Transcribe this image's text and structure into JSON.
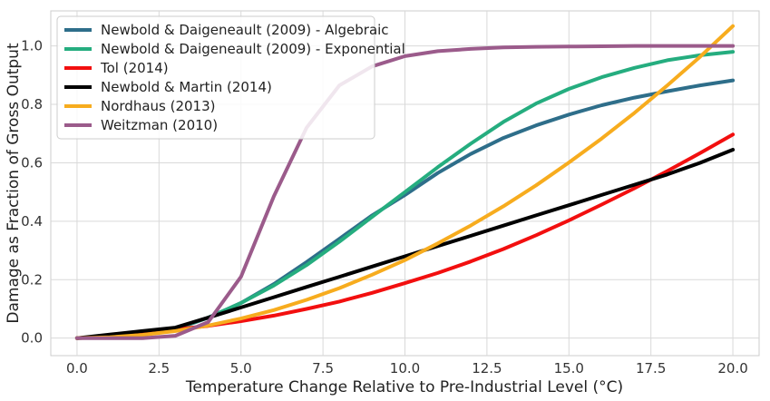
{
  "chart_data": {
    "type": "line",
    "title": "",
    "xlabel": "Temperature Change Relative to Pre-Industrial Level (°C)",
    "ylabel": "Damage as Fraction of Gross Output",
    "xlim": [
      -0.8,
      20.8
    ],
    "ylim": [
      -0.06,
      1.12
    ],
    "xticks": [
      "0.0",
      "2.5",
      "5.0",
      "7.5",
      "10.0",
      "12.5",
      "15.0",
      "17.5",
      "20.0"
    ],
    "yticks": [
      "0.0",
      "0.2",
      "0.4",
      "0.6",
      "0.8",
      "1.0"
    ],
    "grid": true,
    "legend_position": "top-left",
    "x": [
      0,
      1,
      2,
      3,
      4,
      5,
      6,
      7,
      8,
      9,
      10,
      11,
      12,
      13,
      14,
      15,
      16,
      17,
      18,
      19,
      20
    ],
    "series": [
      {
        "name": "Newbold & Daigeneault (2009) - Algebraic",
        "color": "#2e6e8a",
        "values": [
          0.0,
          0.005,
          0.015,
          0.03,
          0.07,
          0.12,
          0.185,
          0.26,
          0.34,
          0.42,
          0.49,
          0.565,
          0.63,
          0.685,
          0.728,
          0.765,
          0.797,
          0.823,
          0.845,
          0.865,
          0.882
        ]
      },
      {
        "name": "Newbold & Daigeneault (2009) - Exponential",
        "color": "#25ad7f",
        "values": [
          0.0,
          0.005,
          0.015,
          0.033,
          0.07,
          0.12,
          0.18,
          0.25,
          0.33,
          0.415,
          0.5,
          0.585,
          0.665,
          0.74,
          0.803,
          0.853,
          0.893,
          0.925,
          0.951,
          0.968,
          0.98
        ]
      },
      {
        "name": "Tol (2014)",
        "color": "#f20f0f",
        "values": [
          0.0,
          0.008,
          0.018,
          0.03,
          0.042,
          0.058,
          0.077,
          0.1,
          0.125,
          0.155,
          0.188,
          0.223,
          0.262,
          0.305,
          0.352,
          0.403,
          0.457,
          0.513,
          0.572,
          0.633,
          0.697
        ]
      },
      {
        "name": "Newbold & Martin (2014)",
        "color": "#000000",
        "values": [
          0.0,
          0.012,
          0.024,
          0.036,
          0.07,
          0.105,
          0.14,
          0.175,
          0.21,
          0.245,
          0.28,
          0.315,
          0.35,
          0.385,
          0.42,
          0.455,
          0.49,
          0.525,
          0.56,
          0.6,
          0.645
        ]
      },
      {
        "name": "Nordhaus (2013)",
        "color": "#f7ac1e",
        "values": [
          0.0,
          0.003,
          0.011,
          0.024,
          0.043,
          0.067,
          0.096,
          0.131,
          0.171,
          0.217,
          0.267,
          0.324,
          0.385,
          0.451,
          0.523,
          0.601,
          0.683,
          0.771,
          0.865,
          0.963,
          1.068
        ]
      },
      {
        "name": "Weitzman (2010)",
        "color": "#9b5b8b",
        "values": [
          0.0,
          0.0,
          0.0,
          0.008,
          0.055,
          0.21,
          0.485,
          0.72,
          0.865,
          0.93,
          0.965,
          0.982,
          0.99,
          0.995,
          0.997,
          0.998,
          0.999,
          1.0,
          1.0,
          1.0,
          1.0
        ]
      }
    ]
  }
}
